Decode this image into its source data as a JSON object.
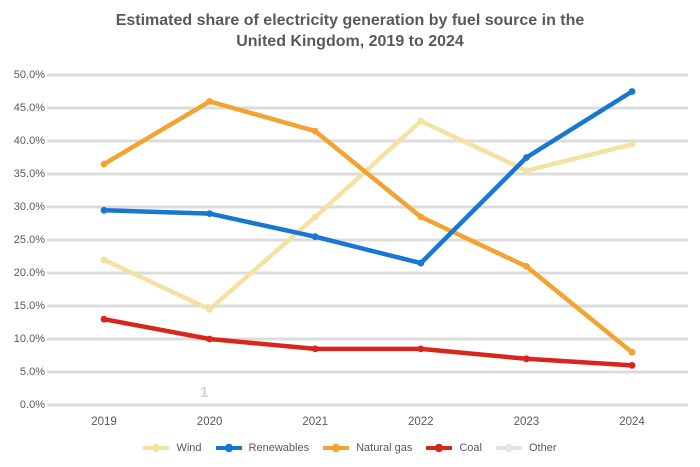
{
  "title": {
    "line1": "Estimated share of electricity generation by fuel source in the",
    "line2": "United Kingdom, 2019 to 2024"
  },
  "y_axis": {
    "ticks_top_to_bottom": [
      "50.0%",
      "45.0%",
      "40.0%",
      "35.0%",
      "30.0%",
      "25.0%",
      "20.0%",
      "15.0%",
      "10.0%",
      "5.0%",
      "0.0%"
    ]
  },
  "x_axis": {
    "categories": [
      "2019",
      "2020",
      "2021",
      "2022",
      "2023",
      "2024"
    ]
  },
  "legend": {
    "items": [
      {
        "label": "Wind",
        "color": "#f3e2a2"
      },
      {
        "label": "Renewables",
        "color": "#1877d2"
      },
      {
        "label": "Natural gas",
        "color": "#f2a331"
      },
      {
        "label": "Coal",
        "color": "#d8261f"
      },
      {
        "label": "Other",
        "color": "#e4e4e4"
      }
    ]
  },
  "stray_mark": {
    "glyph": "1"
  },
  "colors": {
    "background": "#ffffff",
    "gridline": "#dcdcdc",
    "text": "#595959"
  },
  "chart_data": {
    "type": "line",
    "title": "Estimated share of electricity generation by fuel source in the United Kingdom, 2019 to 2024",
    "x": [
      "2019",
      "2020",
      "2021",
      "2022",
      "2023",
      "2024"
    ],
    "series": [
      {
        "name": "Wind",
        "color": "#f3e2a2",
        "values": [
          22,
          14.5,
          28.5,
          43,
          35.5,
          39.5
        ]
      },
      {
        "name": "Renewables",
        "color": "#1877d2",
        "values": [
          29.5,
          29,
          25.5,
          21.5,
          37.5,
          47.5
        ]
      },
      {
        "name": "Natural gas",
        "color": "#f2a331",
        "values": [
          36.5,
          46,
          41.5,
          28.5,
          21,
          8
        ]
      },
      {
        "name": "Coal",
        "color": "#d8261f",
        "values": [
          13,
          10,
          8.5,
          8.5,
          7,
          6
        ]
      },
      {
        "name": "Other",
        "color": "#e4e4e4",
        "values": null
      }
    ],
    "xlabel": "",
    "ylabel": "",
    "ylim": [
      0,
      50
    ],
    "ytick_step": 5,
    "grid": "horizontal",
    "legend_position": "bottom",
    "note_units": "percent"
  }
}
